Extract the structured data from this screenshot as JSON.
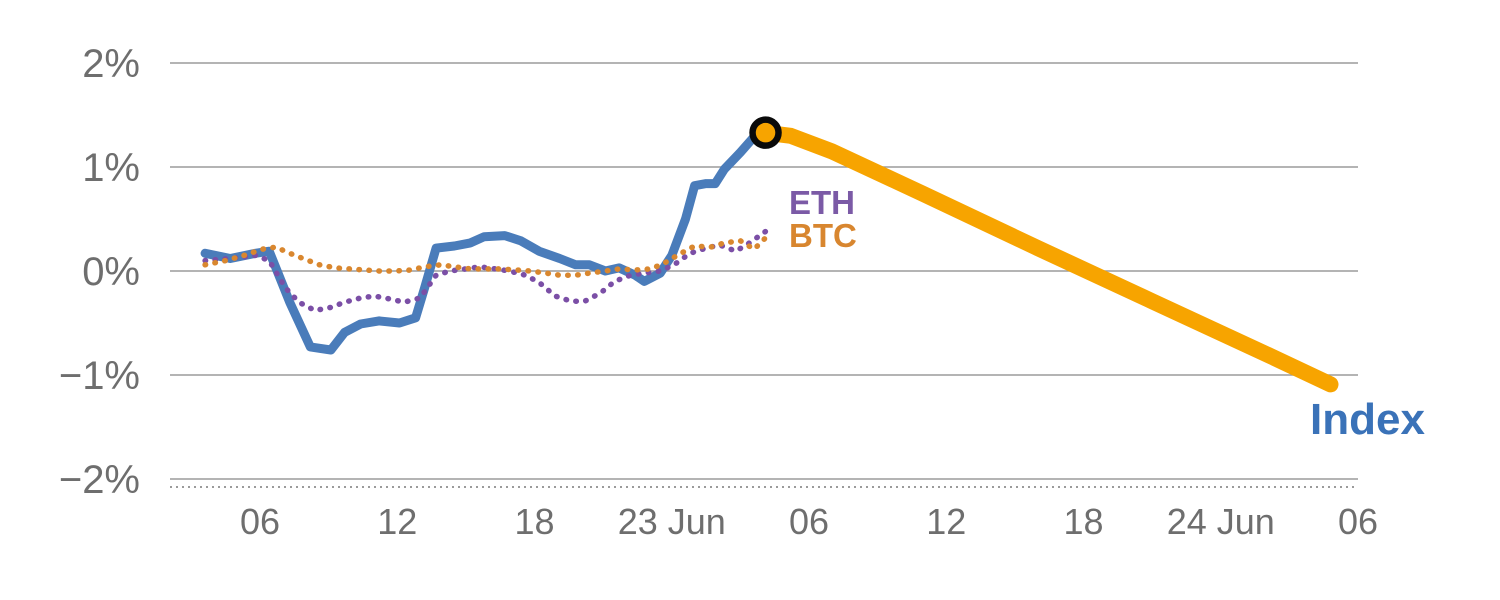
{
  "labels": {
    "eth": "ETH",
    "btc": "BTC",
    "index": "Index"
  },
  "chart_data": {
    "type": "line",
    "title": "",
    "xlabel": "",
    "ylabel": "",
    "grid": "horizontal",
    "legend_position": "inline-labels",
    "axis_text_color": "#6e6e6e",
    "grid_color": "#9b9b9b",
    "ylim": [
      -2,
      2
    ],
    "xlim": [
      2,
      54.5
    ],
    "y_ticks": [
      {
        "value": 2,
        "label": "2%"
      },
      {
        "value": 1,
        "label": "1%"
      },
      {
        "value": 0,
        "label": "0%"
      },
      {
        "value": -1,
        "label": "−1%"
      },
      {
        "value": -2,
        "label": "−2%"
      }
    ],
    "x_ticks": [
      {
        "value": 6,
        "label": "06"
      },
      {
        "value": 12,
        "label": "12"
      },
      {
        "value": 18,
        "label": "18"
      },
      {
        "value": 24,
        "label": "23 Jun"
      },
      {
        "value": 30,
        "label": "06"
      },
      {
        "value": 36,
        "label": "12"
      },
      {
        "value": 42,
        "label": "18"
      },
      {
        "value": 48,
        "label": "24 Jun"
      },
      {
        "value": 54,
        "label": "06"
      }
    ],
    "series": [
      {
        "name": "Index",
        "color": "#4a7cba",
        "style": "solid",
        "width": 9,
        "points": [
          [
            3.6,
            0.17
          ],
          [
            4.7,
            0.12
          ],
          [
            5.8,
            0.17
          ],
          [
            6.4,
            0.19
          ],
          [
            7.3,
            -0.3
          ],
          [
            8.2,
            -0.73
          ],
          [
            9.1,
            -0.76
          ],
          [
            9.7,
            -0.59
          ],
          [
            10.4,
            -0.51
          ],
          [
            11.2,
            -0.48
          ],
          [
            12.1,
            -0.5
          ],
          [
            12.8,
            -0.45
          ],
          [
            13.2,
            -0.16
          ],
          [
            13.7,
            0.22
          ],
          [
            14.5,
            0.24
          ],
          [
            15.2,
            0.27
          ],
          [
            15.8,
            0.33
          ],
          [
            16.7,
            0.34
          ],
          [
            17.4,
            0.29
          ],
          [
            18.2,
            0.19
          ],
          [
            19.1,
            0.12
          ],
          [
            19.8,
            0.06
          ],
          [
            20.4,
            0.06
          ],
          [
            21.1,
            0.0
          ],
          [
            21.7,
            0.03
          ],
          [
            22.4,
            -0.04
          ],
          [
            22.8,
            -0.1
          ],
          [
            23.5,
            -0.02
          ],
          [
            24.0,
            0.15
          ],
          [
            24.6,
            0.5
          ],
          [
            25.0,
            0.82
          ],
          [
            25.5,
            0.84
          ],
          [
            25.9,
            0.84
          ],
          [
            26.3,
            0.98
          ],
          [
            27.0,
            1.14
          ],
          [
            27.6,
            1.29
          ],
          [
            28.1,
            1.33
          ]
        ]
      },
      {
        "name": "ETH",
        "color": "#7b4fa6",
        "style": "dotted",
        "width": 5.5,
        "points": [
          [
            3.6,
            0.1
          ],
          [
            4.7,
            0.12
          ],
          [
            5.8,
            0.15
          ],
          [
            6.4,
            0.1
          ],
          [
            7.1,
            -0.16
          ],
          [
            7.7,
            -0.3
          ],
          [
            8.4,
            -0.38
          ],
          [
            9.1,
            -0.35
          ],
          [
            9.7,
            -0.3
          ],
          [
            10.4,
            -0.26
          ],
          [
            11.0,
            -0.24
          ],
          [
            11.7,
            -0.27
          ],
          [
            12.3,
            -0.3
          ],
          [
            13.0,
            -0.26
          ],
          [
            13.7,
            -0.04
          ],
          [
            14.3,
            0.0
          ],
          [
            15.0,
            0.02
          ],
          [
            15.6,
            0.04
          ],
          [
            16.3,
            0.02
          ],
          [
            16.9,
            0.0
          ],
          [
            17.6,
            -0.04
          ],
          [
            18.2,
            -0.11
          ],
          [
            18.9,
            -0.24
          ],
          [
            19.6,
            -0.29
          ],
          [
            20.2,
            -0.29
          ],
          [
            20.9,
            -0.21
          ],
          [
            21.5,
            -0.1
          ],
          [
            22.2,
            -0.04
          ],
          [
            22.8,
            -0.02
          ],
          [
            23.5,
            0.0
          ],
          [
            24.1,
            0.06
          ],
          [
            24.8,
            0.17
          ],
          [
            25.5,
            0.22
          ],
          [
            26.1,
            0.25
          ],
          [
            26.8,
            0.19
          ],
          [
            27.4,
            0.27
          ],
          [
            28.1,
            0.38
          ]
        ]
      },
      {
        "name": "BTC",
        "color": "#d9872f",
        "style": "dotted",
        "width": 5.5,
        "points": [
          [
            3.6,
            0.06
          ],
          [
            4.5,
            0.1
          ],
          [
            5.3,
            0.15
          ],
          [
            6.1,
            0.21
          ],
          [
            6.7,
            0.23
          ],
          [
            7.3,
            0.17
          ],
          [
            8.0,
            0.11
          ],
          [
            8.6,
            0.06
          ],
          [
            9.3,
            0.03
          ],
          [
            9.9,
            0.02
          ],
          [
            10.6,
            0.01
          ],
          [
            11.2,
            0.0
          ],
          [
            11.9,
            0.0
          ],
          [
            12.6,
            0.01
          ],
          [
            13.2,
            0.04
          ],
          [
            13.9,
            0.06
          ],
          [
            14.5,
            0.04
          ],
          [
            15.2,
            0.02
          ],
          [
            15.8,
            0.02
          ],
          [
            16.5,
            0.02
          ],
          [
            17.2,
            0.01
          ],
          [
            17.8,
            0.0
          ],
          [
            18.5,
            -0.02
          ],
          [
            19.1,
            -0.04
          ],
          [
            19.8,
            -0.04
          ],
          [
            20.4,
            -0.02
          ],
          [
            21.1,
            0.0
          ],
          [
            21.7,
            0.02
          ],
          [
            22.4,
            0.01
          ],
          [
            23.1,
            0.02
          ],
          [
            23.7,
            0.08
          ],
          [
            24.4,
            0.17
          ],
          [
            25.0,
            0.24
          ],
          [
            25.7,
            0.23
          ],
          [
            26.3,
            0.27
          ],
          [
            27.0,
            0.29
          ],
          [
            27.6,
            0.21
          ],
          [
            28.2,
            0.34
          ]
        ]
      },
      {
        "name": "Index projection",
        "color": "#f7a400",
        "style": "solid",
        "width": 16,
        "points": [
          [
            28.1,
            1.33
          ],
          [
            29.2,
            1.3
          ],
          [
            31,
            1.15
          ],
          [
            35,
            0.74
          ],
          [
            40,
            0.22
          ],
          [
            45,
            -0.29
          ],
          [
            50,
            -0.8
          ],
          [
            52.8,
            -1.09
          ]
        ]
      }
    ],
    "marker": {
      "x": 28.1,
      "y": 1.33,
      "fill": "#f7a400",
      "ring": "#0a0a0a"
    }
  }
}
